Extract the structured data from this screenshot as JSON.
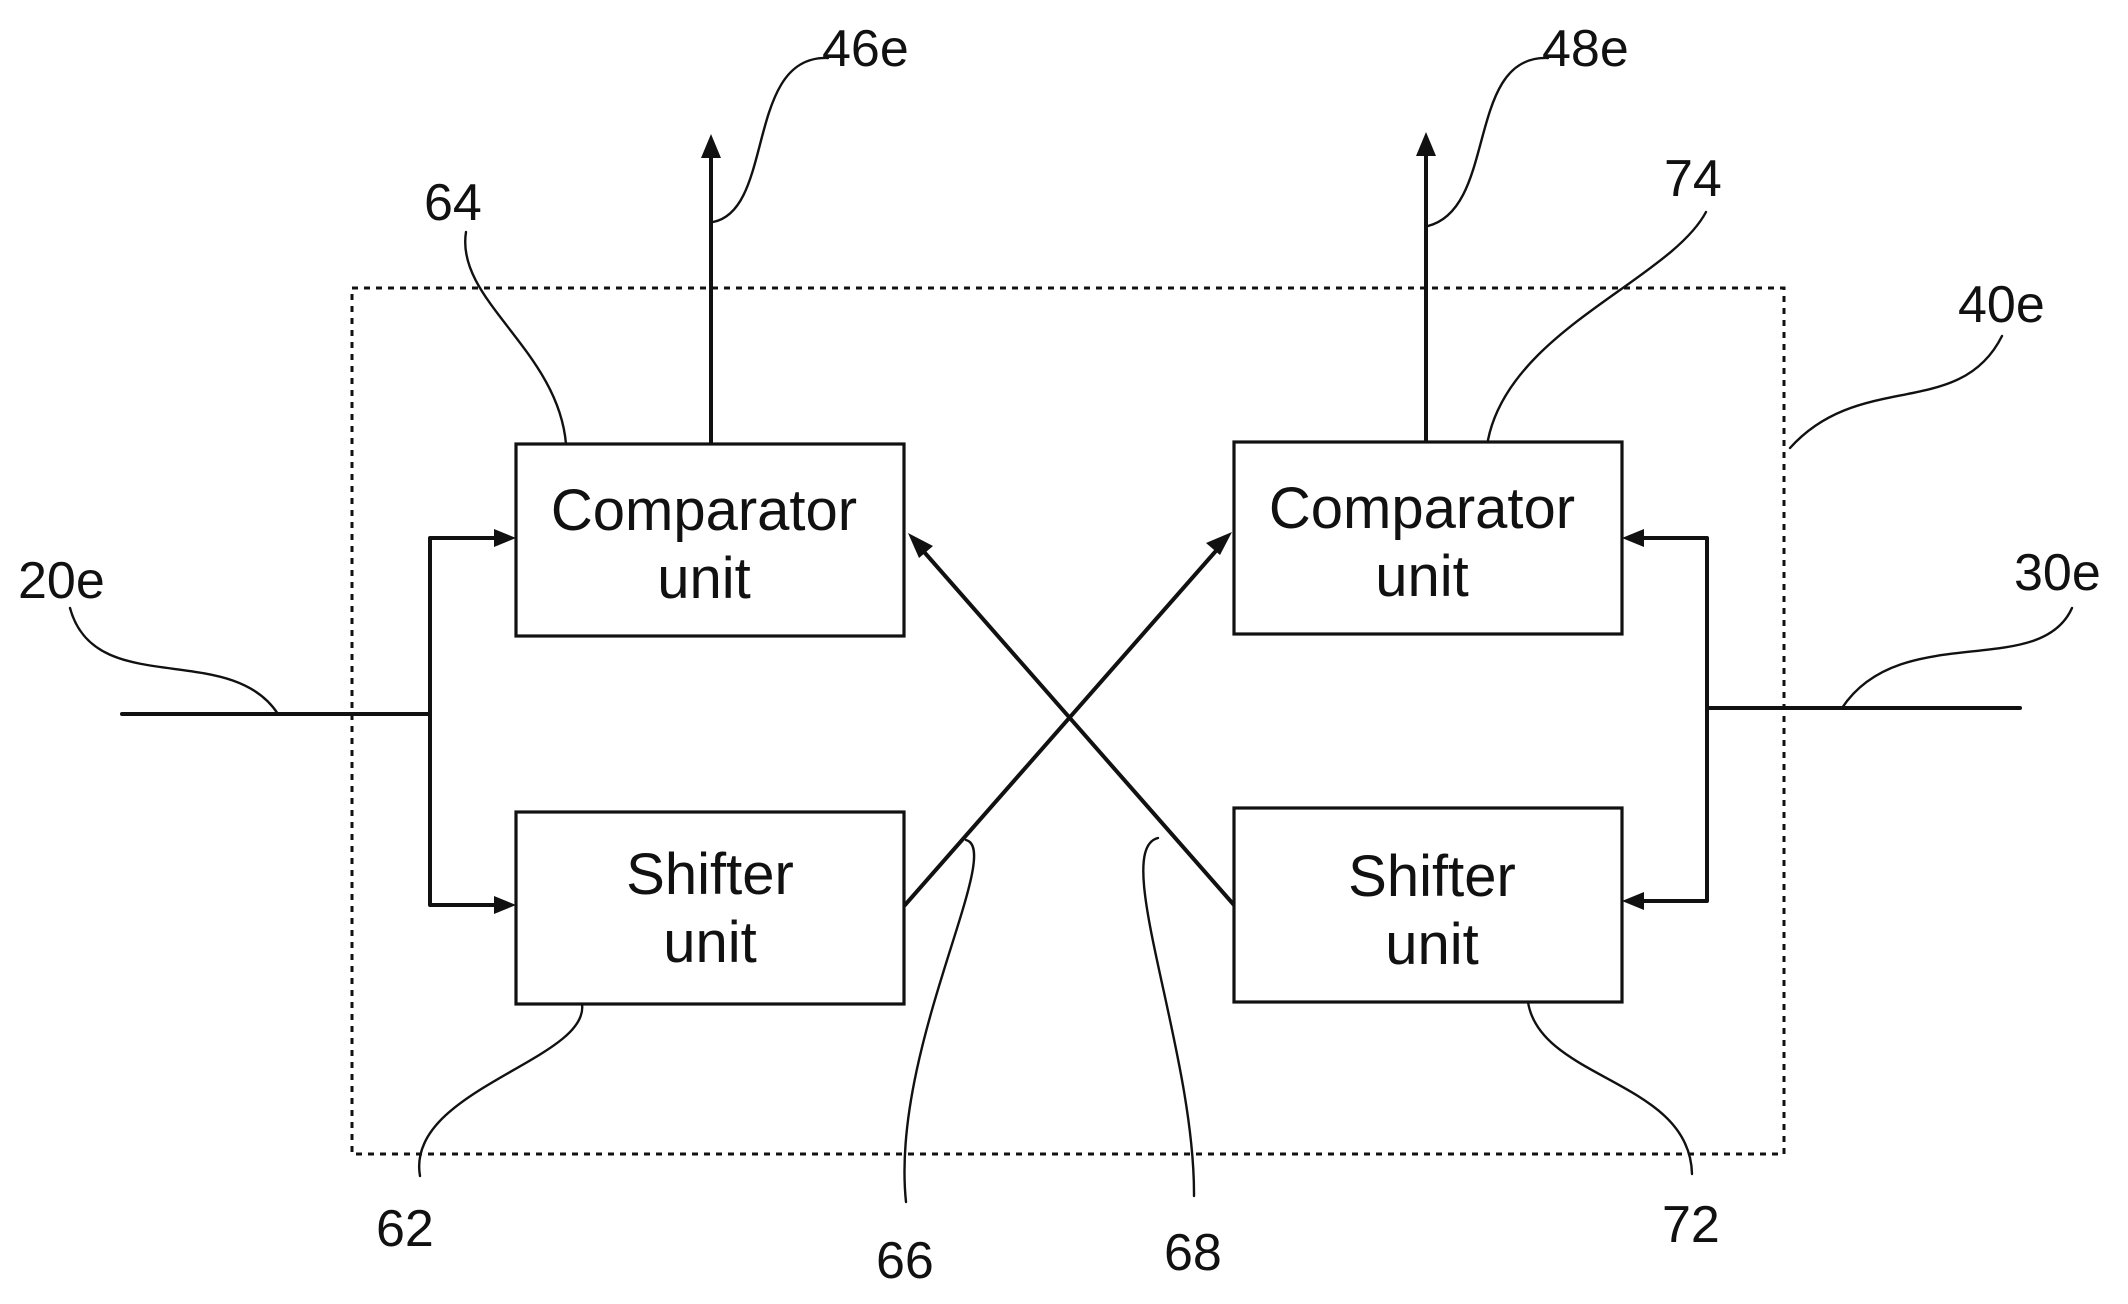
{
  "blocks": {
    "comparator_left": {
      "line1": "Comparator",
      "line2": "unit",
      "ref": "64"
    },
    "comparator_right": {
      "line1": "Comparator",
      "line2": "unit",
      "ref": "74"
    },
    "shifter_left": {
      "line1": "Shifter",
      "line2": "unit",
      "ref": "62"
    },
    "shifter_right": {
      "line1": "Shifter",
      "line2": "unit",
      "ref": "72"
    }
  },
  "refs": {
    "input_left": "20e",
    "input_right": "30e",
    "output_left": "46e",
    "output_right": "48e",
    "module": "40e",
    "cross_left_to_right": "66",
    "cross_right_to_left": "68"
  },
  "colors": {
    "ink": "#111111",
    "background": "#ffffff"
  }
}
